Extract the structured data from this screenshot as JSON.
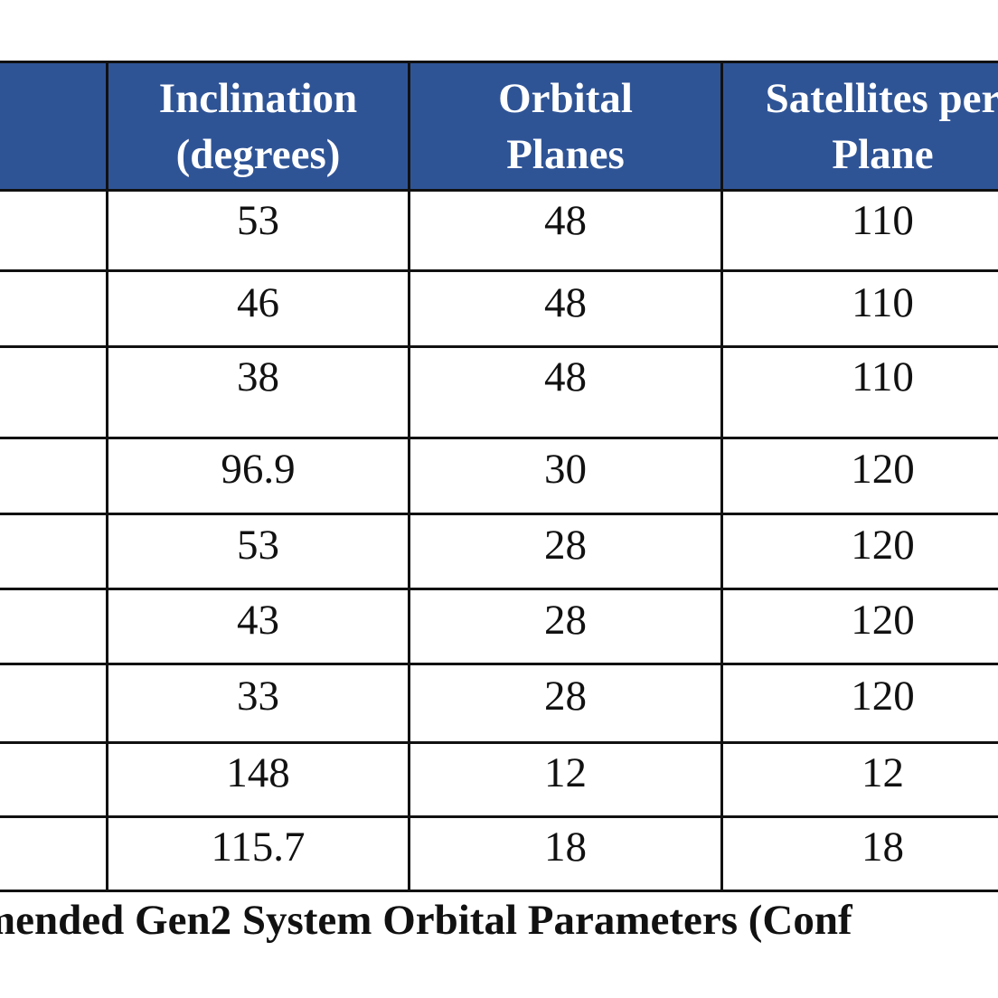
{
  "table": {
    "headers": [
      {
        "lines": [
          "",
          ""
        ]
      },
      {
        "lines": [
          "Inclination",
          "(degrees)"
        ]
      },
      {
        "lines": [
          "Orbital",
          "Planes"
        ]
      },
      {
        "lines": [
          "Satellites per",
          "Plane"
        ]
      },
      {
        "lines": [
          "",
          ""
        ]
      }
    ],
    "rows": [
      {
        "cells": [
          "",
          "53",
          "48",
          "110",
          ""
        ]
      },
      {
        "cells": [
          "",
          "46",
          "48",
          "110",
          ""
        ]
      },
      {
        "cells": [
          "",
          "38",
          "48",
          "110",
          ""
        ]
      },
      {
        "cells": [
          "",
          "96.9",
          "30",
          "120",
          ""
        ]
      },
      {
        "cells": [
          "",
          "53",
          "28",
          "120",
          ""
        ]
      },
      {
        "cells": [
          "",
          "43",
          "28",
          "120",
          ""
        ]
      },
      {
        "cells": [
          "",
          "33",
          "28",
          "120",
          ""
        ]
      },
      {
        "cells": [
          "",
          "148",
          "12",
          "12",
          ""
        ]
      },
      {
        "cells": [
          "",
          "115.7",
          "18",
          "18",
          ""
        ]
      }
    ]
  },
  "caption": "mended Gen2 System Orbital Parameters (Conf"
}
